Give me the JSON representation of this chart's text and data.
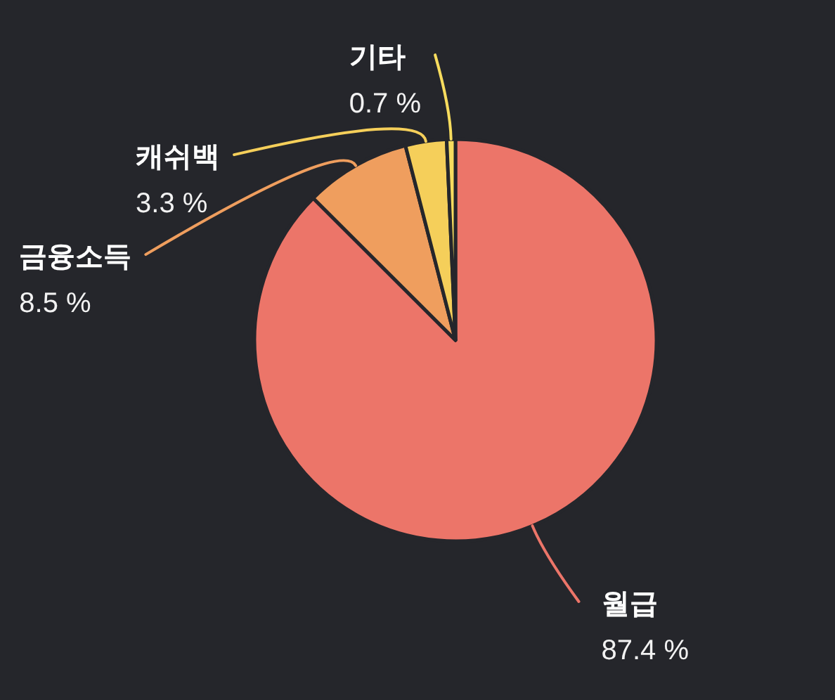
{
  "chart_data": {
    "type": "pie",
    "categories": [
      "월급",
      "금융소득",
      "캐쉬백",
      "기타"
    ],
    "values": [
      87.4,
      8.5,
      3.3,
      0.7
    ],
    "colors": [
      "#ec7569",
      "#ef9e5e",
      "#f5cf5a",
      "#f7dc5e"
    ],
    "value_labels": [
      "87.4 %",
      "8.5 %",
      "3.3 %",
      "0.7 %"
    ]
  }
}
